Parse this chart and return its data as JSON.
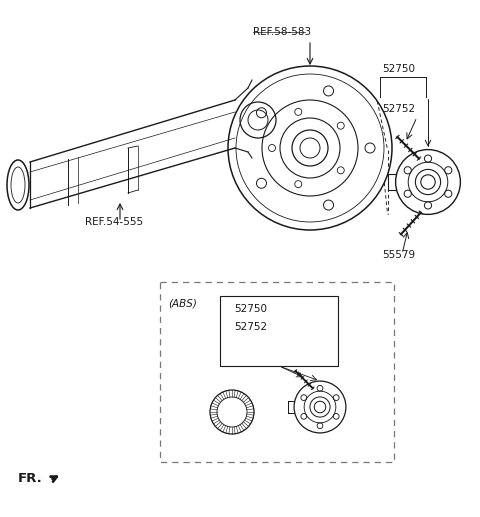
{
  "bg_color": "#ffffff",
  "lc": "#1a1a1a",
  "gc": "#666666",
  "labels": {
    "ref58": "REF.58-583",
    "ref54": "REF.54-555",
    "p52750": "52750",
    "p52752": "52752",
    "p55579": "55579",
    "abs_label": "(ABS)",
    "fr_label": "FR."
  },
  "fs": 7.5
}
